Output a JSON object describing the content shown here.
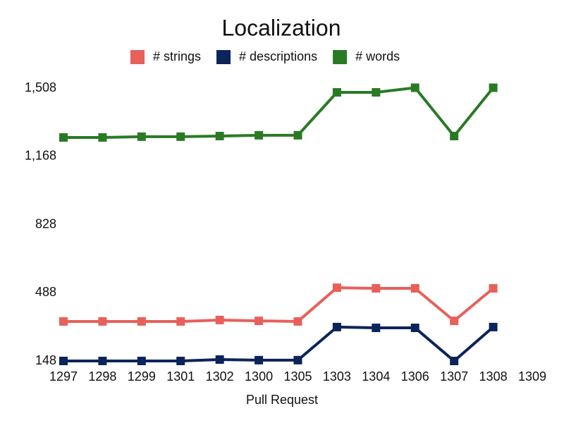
{
  "chart_data": {
    "type": "line",
    "title": "Localization",
    "x_label": "Pull Request",
    "categories": [
      "1297",
      "1298",
      "1299",
      "1301",
      "1302",
      "1300",
      "1305",
      "1303",
      "1304",
      "1306",
      "1307",
      "1308",
      "1309"
    ],
    "series": [
      {
        "name": "# strings",
        "color": "#e8605a",
        "values": [
          345,
          345,
          345,
          345,
          352,
          348,
          345,
          513,
          510,
          510,
          348,
          510,
          null
        ]
      },
      {
        "name": "# descriptions",
        "color": "#0b2459",
        "values": [
          148,
          148,
          148,
          148,
          155,
          152,
          152,
          317,
          313,
          313,
          148,
          317,
          null
        ]
      },
      {
        "name": "# words",
        "color": "#2a7a25",
        "values": [
          1262,
          1262,
          1266,
          1266,
          1269,
          1273,
          1273,
          1487,
          1487,
          1510,
          1269,
          1510,
          null
        ]
      }
    ],
    "ylim": [
      148,
      1508
    ],
    "yticks": [
      148,
      488,
      828,
      {
        "value": 1168,
        "label": "1,168"
      },
      {
        "value": 1508,
        "label": "1,508"
      }
    ],
    "grid": false,
    "legend": "top"
  }
}
